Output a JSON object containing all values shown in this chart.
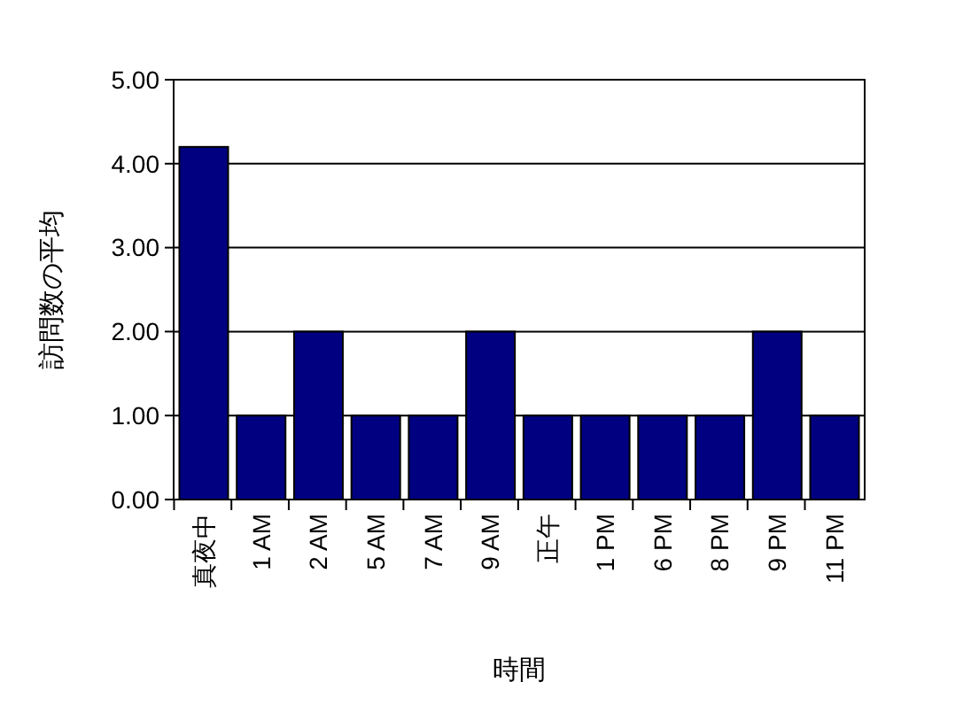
{
  "chart_data": {
    "type": "bar",
    "xlabel": "時間",
    "ylabel": "訪問数の平均",
    "categories": [
      "真夜中",
      "1 AM",
      "2 AM",
      "5 AM",
      "7 AM",
      "9 AM",
      "正午",
      "1 PM",
      "6 PM",
      "8 PM",
      "9 PM",
      "11 PM"
    ],
    "values": [
      4.2,
      1,
      2,
      1,
      1,
      2,
      1,
      1,
      1,
      1,
      2,
      1
    ],
    "color": "#000080",
    "ylim": [
      0,
      5
    ],
    "yticks": [
      {
        "value": 0,
        "label": "0.00"
      },
      {
        "value": 1,
        "label": "1.00"
      },
      {
        "value": 2,
        "label": "2.00"
      },
      {
        "value": 3,
        "label": "3.00"
      },
      {
        "value": 4,
        "label": "4.00"
      },
      {
        "value": 5,
        "label": "5.00"
      }
    ],
    "grid": "y"
  }
}
